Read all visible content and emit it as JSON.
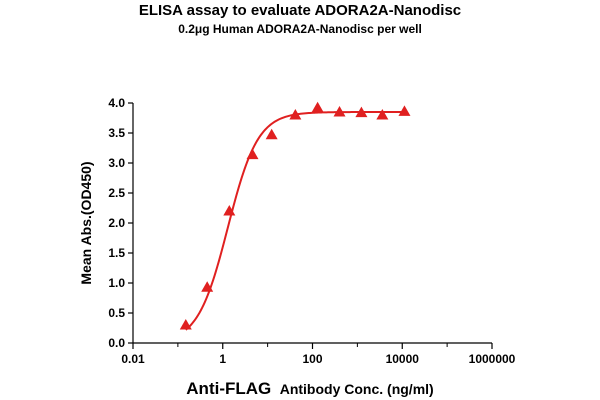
{
  "chart_data": {
    "type": "scatter",
    "title": "ELISA assay to evaluate ADORA2A-Nanodisc",
    "subtitle": "0.2μg Human ADORA2A-Nanodisc per well",
    "xlabel_prefix": "Anti-FLAG",
    "xlabel_suffix": "Antibody Conc. (ng/ml)",
    "ylabel": "Mean Abs.(OD450)",
    "x_scale": "log10",
    "xlim": [
      0.01,
      1000000
    ],
    "ylim": [
      0.0,
      4.0
    ],
    "x_ticks": [
      0.01,
      1,
      100,
      10000,
      1000000
    ],
    "x_tick_labels": [
      "0.01",
      "1",
      "100",
      "10000",
      "1000000"
    ],
    "y_ticks": [
      0.0,
      0.5,
      1.0,
      1.5,
      2.0,
      2.5,
      3.0,
      3.5,
      4.0
    ],
    "y_tick_labels": [
      "0.0",
      "0.5",
      "1.0",
      "1.5",
      "2.0",
      "2.5",
      "3.0",
      "3.5",
      "4.0"
    ],
    "grid": false,
    "color": "#e02020",
    "series": [
      {
        "marker": "triangle",
        "x": [
          0.15,
          0.45,
          1.4,
          4.6,
          12.3,
          41.5,
          130,
          400,
          1230,
          3600,
          11200
        ],
        "y": [
          0.3,
          0.93,
          2.2,
          3.14,
          3.47,
          3.8,
          3.92,
          3.85,
          3.84,
          3.8,
          3.86
        ]
      }
    ],
    "fit": {
      "type": "4PL",
      "bottom": 0.0,
      "top": 3.85,
      "ec50": 1.3,
      "hill": 1.3
    }
  }
}
